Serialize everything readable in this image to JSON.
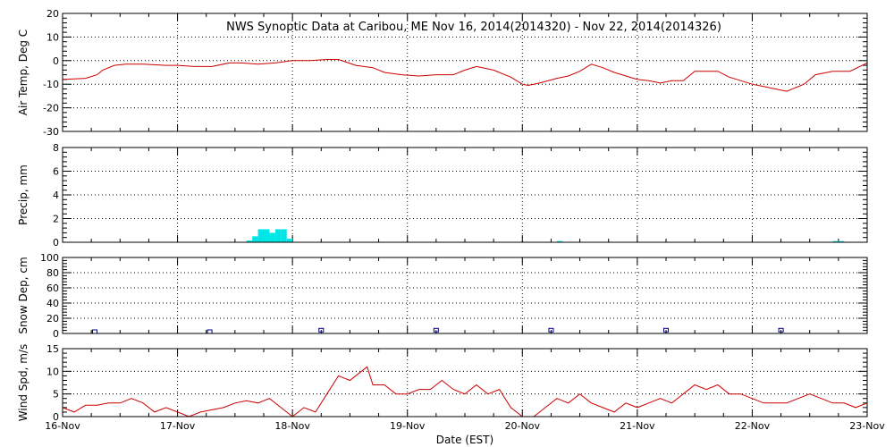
{
  "title": "NWS Synoptic Data at Caribou, ME    Nov 16, 2014(2014320) - Nov 22, 2014(2014326)",
  "xlabel": "Date (EST)",
  "x_ticks": [
    "16-Nov",
    "17-Nov",
    "18-Nov",
    "19-Nov",
    "20-Nov",
    "21-Nov",
    "22-Nov",
    "23-Nov"
  ],
  "colors": {
    "line": "#cc0000",
    "precip": "#00e5e5",
    "snow": "#000080",
    "grid": "#000000"
  },
  "chart_data": [
    {
      "type": "line",
      "ylabel": "Air Temp, Deg C",
      "ylim": [
        -30,
        20
      ],
      "yticks": [
        -30,
        -20,
        -10,
        0,
        10,
        20
      ],
      "x_unit": "day",
      "xlim": [
        0,
        7
      ],
      "series": [
        {
          "x": [
            0,
            0.2,
            0.3,
            0.35,
            0.45,
            0.55,
            0.7,
            0.9,
            1.0,
            1.15,
            1.3,
            1.45,
            1.55,
            1.7,
            1.85,
            2.0,
            2.15,
            2.3,
            2.4,
            2.55,
            2.7,
            2.8,
            2.95,
            3.1,
            3.25,
            3.4,
            3.5,
            3.6,
            3.75,
            3.9,
            4.0,
            4.05,
            4.15,
            4.3,
            4.4,
            4.5,
            4.6,
            4.7,
            4.8,
            5.0,
            5.1,
            5.2,
            5.3,
            5.4,
            5.5,
            5.6,
            5.7,
            5.8,
            5.9,
            6.0,
            6.1,
            6.2,
            6.3,
            6.45,
            6.55,
            6.7,
            6.85,
            7.0
          ],
          "y": [
            -8,
            -7.5,
            -6,
            -4,
            -2,
            -1.5,
            -1.5,
            -2,
            -2,
            -2.5,
            -2.5,
            -1,
            -1,
            -1.5,
            -1,
            0,
            0,
            0.5,
            0.5,
            -2,
            -3,
            -5,
            -6,
            -6.5,
            -6,
            -6,
            -4,
            -2.5,
            -4,
            -7,
            -10,
            -10.5,
            -9.5,
            -7.5,
            -6.5,
            -4.5,
            -1.5,
            -3,
            -5,
            -8,
            -8.5,
            -9.5,
            -8.5,
            -8.5,
            -4.5,
            -4.5,
            -4.5,
            -7,
            -8.5,
            -10,
            -11,
            -12,
            -13,
            -10,
            -6,
            -4.5,
            -4.5,
            -1
          ]
        }
      ]
    },
    {
      "type": "bar",
      "ylabel": "Precip, mm",
      "ylim": [
        0,
        8
      ],
      "yticks": [
        0,
        2,
        4,
        6,
        8
      ],
      "x_unit": "day",
      "bars": [
        {
          "x": 1.6,
          "value": 0.15
        },
        {
          "x": 1.65,
          "value": 0.5
        },
        {
          "x": 1.7,
          "value": 1.1
        },
        {
          "x": 1.75,
          "value": 1.1
        },
        {
          "x": 1.8,
          "value": 0.8
        },
        {
          "x": 1.85,
          "value": 1.1
        },
        {
          "x": 1.9,
          "value": 1.1
        },
        {
          "x": 1.95,
          "value": 0.3
        },
        {
          "x": 4.3,
          "value": 0.1
        },
        {
          "x": 6.7,
          "value": 0.1
        },
        {
          "x": 6.75,
          "value": 0.1
        }
      ]
    },
    {
      "type": "scatter",
      "ylabel": "Snow Dep, cm",
      "ylim": [
        0,
        100
      ],
      "yticks": [
        0,
        20,
        40,
        60,
        80,
        100
      ],
      "x_unit": "day",
      "points": [
        {
          "x": 0.28,
          "y": 0
        },
        {
          "x": 1.28,
          "y": 0
        },
        {
          "x": 2.25,
          "y": 2
        },
        {
          "x": 3.25,
          "y": 2
        },
        {
          "x": 4.25,
          "y": 2
        },
        {
          "x": 5.25,
          "y": 2
        },
        {
          "x": 6.25,
          "y": 2
        }
      ]
    },
    {
      "type": "line",
      "ylabel": "Wind Spd, m/s",
      "ylim": [
        0,
        15
      ],
      "yticks": [
        0,
        5,
        10,
        15
      ],
      "x_unit": "day",
      "series": [
        {
          "x": [
            0,
            0.1,
            0.2,
            0.3,
            0.4,
            0.5,
            0.6,
            0.7,
            0.8,
            0.9,
            1.0,
            1.1,
            1.2,
            1.3,
            1.4,
            1.5,
            1.6,
            1.7,
            1.8,
            1.9,
            2.0,
            2.1,
            2.2,
            2.3,
            2.4,
            2.5,
            2.6,
            2.65,
            2.7,
            2.8,
            2.9,
            3.0,
            3.1,
            3.2,
            3.3,
            3.4,
            3.5,
            3.6,
            3.7,
            3.8,
            3.9,
            4.0,
            4.1,
            4.2,
            4.3,
            4.4,
            4.5,
            4.6,
            4.7,
            4.8,
            4.9,
            5.0,
            5.1,
            5.2,
            5.3,
            5.4,
            5.5,
            5.6,
            5.7,
            5.8,
            5.9,
            6.0,
            6.1,
            6.2,
            6.3,
            6.4,
            6.5,
            6.6,
            6.7,
            6.8,
            6.9,
            7.0
          ],
          "y": [
            2,
            1,
            2.5,
            2.5,
            3,
            3,
            4,
            3,
            1,
            2,
            1,
            0,
            1,
            1.5,
            2,
            3,
            3.5,
            3,
            4,
            2,
            0,
            2,
            1,
            5,
            9,
            8,
            10,
            11,
            7,
            7,
            5,
            5,
            6,
            6,
            8,
            6,
            5,
            7,
            5,
            6,
            2,
            0,
            0,
            2,
            4,
            3,
            5,
            3,
            2,
            1,
            3,
            2,
            3,
            4,
            3,
            5,
            7,
            6,
            7,
            5,
            5,
            4,
            3,
            3,
            3,
            4,
            5,
            4,
            3,
            3,
            2,
            3
          ]
        }
      ]
    }
  ]
}
